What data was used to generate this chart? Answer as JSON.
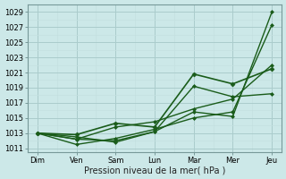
{
  "xlabel": "Pression niveau de la mer( hPa )",
  "bg_color": "#cce8e8",
  "grid_color_major": "#aacccc",
  "grid_color_minor": "#c4e0e0",
  "line_color": "#1a5c1a",
  "x_labels": [
    "Dim",
    "Ven",
    "Sam",
    "Lun",
    "Mar",
    "Mer",
    "Jeu"
  ],
  "x_positions": [
    0,
    1,
    2,
    3,
    4,
    5,
    6
  ],
  "ylim": [
    1010.5,
    1030.0
  ],
  "yticks": [
    1011,
    1013,
    1015,
    1017,
    1019,
    1021,
    1023,
    1025,
    1027,
    1029
  ],
  "series": [
    [
      1013.0,
      1012.2,
      1012.0,
      1013.2,
      1015.8,
      1015.2,
      1029.0
    ],
    [
      1013.0,
      1011.5,
      1012.3,
      1013.5,
      1015.0,
      1015.8,
      1027.3
    ],
    [
      1013.0,
      1012.2,
      1013.8,
      1014.5,
      1016.2,
      1017.5,
      1022.0
    ],
    [
      1013.0,
      1012.8,
      1014.3,
      1013.8,
      1020.8,
      1019.5,
      1021.5
    ],
    [
      1013.0,
      1012.5,
      1011.8,
      1013.2,
      1019.2,
      1017.8,
      1018.2
    ]
  ],
  "series_styles": [
    {
      "lw": 1.0,
      "marker": "D",
      "ms": 2.0
    },
    {
      "lw": 1.0,
      "marker": "D",
      "ms": 2.0
    },
    {
      "lw": 1.0,
      "marker": "D",
      "ms": 2.0
    },
    {
      "lw": 1.2,
      "marker": "D",
      "ms": 2.5
    },
    {
      "lw": 1.0,
      "marker": "D",
      "ms": 2.0
    }
  ],
  "tick_fontsize": 6,
  "xlabel_fontsize": 7
}
